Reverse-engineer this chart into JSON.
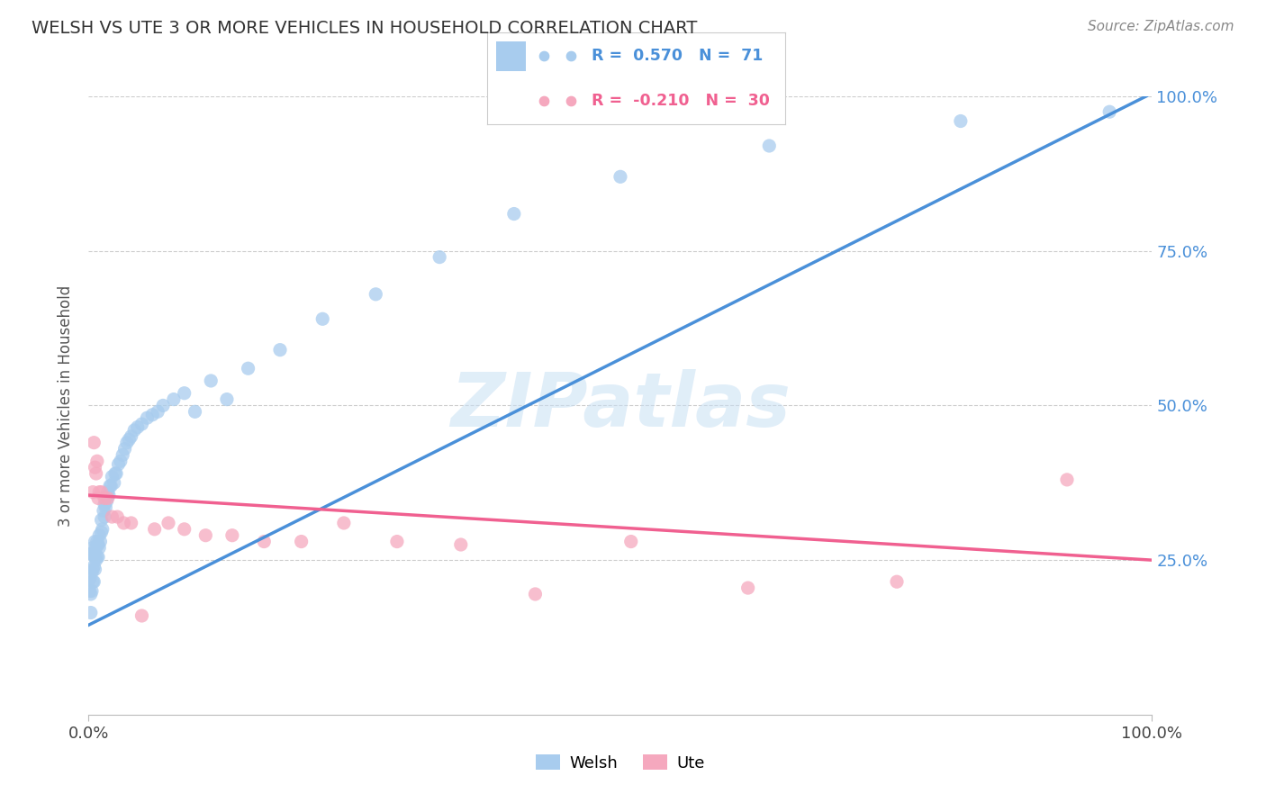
{
  "title": "WELSH VS UTE 3 OR MORE VEHICLES IN HOUSEHOLD CORRELATION CHART",
  "source": "Source: ZipAtlas.com",
  "ylabel": "3 or more Vehicles in Household",
  "xlim": [
    0.0,
    1.0
  ],
  "ylim": [
    0.0,
    1.0
  ],
  "welsh_R": 0.57,
  "welsh_N": 71,
  "ute_R": -0.21,
  "ute_N": 30,
  "welsh_color": "#A8CCEE",
  "ute_color": "#F5A8BE",
  "welsh_line_color": "#4A90D9",
  "ute_line_color": "#F06090",
  "background_color": "#FFFFFF",
  "welsh_x": [
    0.001,
    0.001,
    0.002,
    0.002,
    0.002,
    0.003,
    0.003,
    0.003,
    0.004,
    0.004,
    0.004,
    0.005,
    0.005,
    0.005,
    0.006,
    0.006,
    0.006,
    0.007,
    0.007,
    0.008,
    0.008,
    0.009,
    0.009,
    0.01,
    0.01,
    0.011,
    0.012,
    0.012,
    0.013,
    0.014,
    0.015,
    0.015,
    0.016,
    0.017,
    0.018,
    0.019,
    0.02,
    0.021,
    0.022,
    0.024,
    0.025,
    0.026,
    0.028,
    0.03,
    0.032,
    0.034,
    0.036,
    0.038,
    0.04,
    0.043,
    0.046,
    0.05,
    0.055,
    0.06,
    0.065,
    0.07,
    0.08,
    0.09,
    0.1,
    0.115,
    0.13,
    0.15,
    0.18,
    0.22,
    0.27,
    0.33,
    0.4,
    0.5,
    0.64,
    0.82,
    0.96
  ],
  "welsh_y": [
    0.2,
    0.22,
    0.165,
    0.195,
    0.26,
    0.2,
    0.23,
    0.26,
    0.215,
    0.235,
    0.27,
    0.215,
    0.24,
    0.26,
    0.235,
    0.255,
    0.28,
    0.25,
    0.27,
    0.255,
    0.28,
    0.255,
    0.275,
    0.27,
    0.29,
    0.28,
    0.295,
    0.315,
    0.3,
    0.33,
    0.32,
    0.34,
    0.335,
    0.345,
    0.36,
    0.355,
    0.37,
    0.37,
    0.385,
    0.375,
    0.39,
    0.39,
    0.405,
    0.41,
    0.42,
    0.43,
    0.44,
    0.445,
    0.45,
    0.46,
    0.465,
    0.47,
    0.48,
    0.485,
    0.49,
    0.5,
    0.51,
    0.52,
    0.49,
    0.54,
    0.51,
    0.56,
    0.59,
    0.64,
    0.68,
    0.74,
    0.81,
    0.87,
    0.92,
    0.96,
    0.975
  ],
  "ute_x": [
    0.004,
    0.005,
    0.006,
    0.007,
    0.008,
    0.009,
    0.01,
    0.012,
    0.015,
    0.018,
    0.022,
    0.027,
    0.033,
    0.04,
    0.05,
    0.062,
    0.075,
    0.09,
    0.11,
    0.135,
    0.165,
    0.2,
    0.24,
    0.29,
    0.35,
    0.42,
    0.51,
    0.62,
    0.76,
    0.92
  ],
  "ute_y": [
    0.36,
    0.44,
    0.4,
    0.39,
    0.41,
    0.35,
    0.36,
    0.36,
    0.35,
    0.35,
    0.32,
    0.32,
    0.31,
    0.31,
    0.16,
    0.3,
    0.31,
    0.3,
    0.29,
    0.29,
    0.28,
    0.28,
    0.31,
    0.28,
    0.275,
    0.195,
    0.28,
    0.205,
    0.215,
    0.38
  ]
}
